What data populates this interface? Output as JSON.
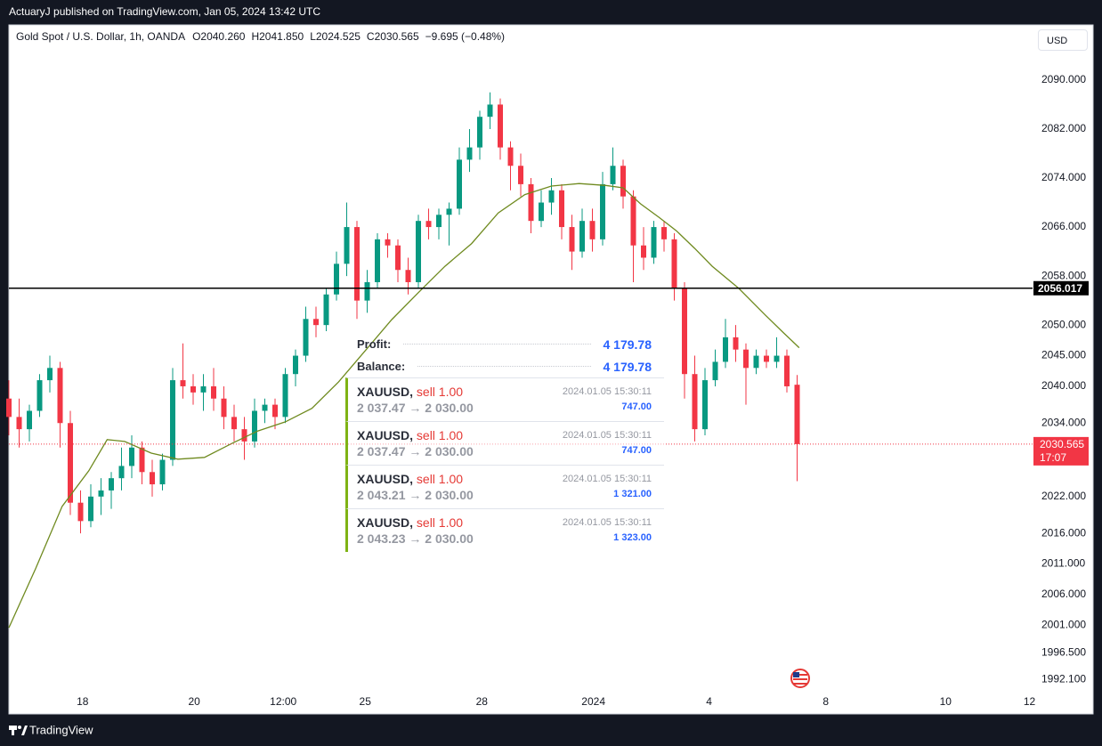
{
  "header": {
    "publisher": "ActuaryJ published on TradingView.com, Jan 05, 2024 13:42 UTC"
  },
  "chart_data": {
    "type": "candlestick",
    "title": "Gold Spot / U.S. Dollar, 1h, OANDA",
    "ohlc_labels": [
      "O2040.260",
      "H2041.850",
      "L2024.525",
      "C2030.565"
    ],
    "change_label": "−9.695 (−0.48%)",
    "currency": "USD",
    "up_color": "#089981",
    "down_color": "#f23645",
    "grid": false,
    "xlim": [
      0,
      100
    ],
    "ylim": [
      1990,
      2099
    ],
    "xticks": [
      {
        "value": 7.2,
        "label": "18"
      },
      {
        "value": 18.1,
        "label": "20"
      },
      {
        "value": 26.8,
        "label": "12:00"
      },
      {
        "value": 34.8,
        "label": "25"
      },
      {
        "value": 46.2,
        "label": "28"
      },
      {
        "value": 57.1,
        "label": "2024"
      },
      {
        "value": 68.4,
        "label": "4"
      },
      {
        "value": 79.8,
        "label": "8"
      },
      {
        "value": 91.5,
        "label": "10"
      },
      {
        "value": 99.7,
        "label": "12"
      }
    ],
    "yticks": [
      {
        "value": 2090,
        "label": "2090.000"
      },
      {
        "value": 2082,
        "label": "2082.000"
      },
      {
        "value": 2074,
        "label": "2074.000"
      },
      {
        "value": 2066,
        "label": "2066.000"
      },
      {
        "value": 2058,
        "label": "2058.000"
      },
      {
        "value": 2050,
        "label": "2050.000"
      },
      {
        "value": 2045,
        "label": "2045.000"
      },
      {
        "value": 2040,
        "label": "2040.000"
      },
      {
        "value": 2034,
        "label": "2034.000"
      },
      {
        "value": 2022,
        "label": "2022.000"
      },
      {
        "value": 2016,
        "label": "2016.000"
      },
      {
        "value": 2011,
        "label": "2011.000"
      },
      {
        "value": 2006,
        "label": "2006.000"
      },
      {
        "value": 2001,
        "label": "2001.000"
      },
      {
        "value": 1996.5,
        "label": "1996.500"
      },
      {
        "value": 1992.1,
        "label": "1992.100"
      }
    ],
    "x": [
      0,
      1,
      2,
      3,
      4,
      5,
      6,
      7,
      8,
      9,
      10,
      11,
      12,
      13,
      14,
      15,
      16,
      17,
      18,
      19,
      20,
      21,
      22,
      23,
      24,
      25,
      26,
      27,
      28,
      29,
      30,
      31,
      32,
      33,
      34,
      35,
      36,
      37,
      38,
      39,
      40,
      41,
      42,
      43,
      44,
      45,
      46,
      47,
      48,
      49,
      50,
      51,
      52,
      53,
      54,
      55,
      56,
      57,
      58,
      59,
      60,
      61,
      62,
      63,
      64,
      65,
      66,
      67,
      68,
      69,
      70,
      71,
      72,
      73,
      74,
      75,
      76,
      77
    ],
    "open": [
      2038,
      2035,
      2033,
      2036,
      2041,
      2043,
      2034,
      2021,
      2018,
      2022,
      2023,
      2025,
      2027,
      2030,
      2026,
      2024,
      2028,
      2041,
      2040,
      2039,
      2040,
      2038,
      2035,
      2033,
      2031,
      2036,
      2037,
      2035,
      2042,
      2045,
      2051,
      2050,
      2055,
      2060,
      2066,
      2054,
      2057,
      2064,
      2063,
      2059,
      2057,
      2067,
      2066,
      2068,
      2069,
      2077,
      2079,
      2084,
      2086,
      2079,
      2076,
      2073,
      2067,
      2070,
      2072,
      2066,
      2062,
      2067,
      2064,
      2073,
      2076,
      2071,
      2063,
      2061,
      2066,
      2064,
      2056,
      2042,
      2033,
      2041,
      2044,
      2048,
      2046,
      2043,
      2045,
      2044,
      2045,
      2040.26
    ],
    "high": [
      2041,
      2038,
      2037,
      2042,
      2045,
      2044,
      2036,
      2023,
      2024,
      2025,
      2026,
      2030,
      2032,
      2031,
      2028,
      2029,
      2043,
      2047,
      2042,
      2042,
      2043,
      2040,
      2037,
      2035,
      2038,
      2038,
      2038,
      2043,
      2046,
      2053,
      2053,
      2056,
      2062,
      2070,
      2067,
      2059,
      2065,
      2065,
      2064,
      2061,
      2068,
      2069,
      2069,
      2070,
      2079,
      2082,
      2085,
      2088,
      2087,
      2080,
      2078,
      2074,
      2072,
      2074,
      2073,
      2068,
      2069,
      2069,
      2075,
      2079,
      2077,
      2072,
      2066,
      2067,
      2067,
      2065,
      2057,
      2045,
      2043,
      2046,
      2051,
      2050,
      2047,
      2046,
      2046,
      2048,
      2046,
      2041.85
    ],
    "low": [
      2032,
      2030,
      2031,
      2035,
      2039,
      2030,
      2019,
      2016,
      2017,
      2019,
      2020,
      2023,
      2025,
      2024,
      2022,
      2023,
      2027,
      2038,
      2037,
      2036,
      2036,
      2033,
      2031,
      2028,
      2030,
      2034,
      2033,
      2034,
      2040,
      2044,
      2048,
      2049,
      2054,
      2058,
      2051,
      2052,
      2056,
      2061,
      2057,
      2055,
      2056,
      2064,
      2064,
      2063,
      2068,
      2075,
      2077,
      2082,
      2077,
      2072,
      2071,
      2065,
      2066,
      2068,
      2064,
      2059,
      2061,
      2062,
      2063,
      2072,
      2069,
      2057,
      2059,
      2060,
      2062,
      2054,
      2038,
      2031,
      2032,
      2040,
      2043,
      2044,
      2037,
      2042,
      2043,
      2043,
      2039,
      2024.525
    ],
    "close": [
      2035,
      2033,
      2036,
      2041,
      2043,
      2034,
      2021,
      2018,
      2022,
      2023,
      2025,
      2027,
      2030,
      2026,
      2024,
      2028,
      2041,
      2040,
      2039,
      2040,
      2038,
      2035,
      2033,
      2031,
      2036,
      2037,
      2035,
      2042,
      2045,
      2051,
      2050,
      2055,
      2060,
      2066,
      2054,
      2057,
      2064,
      2063,
      2059,
      2057,
      2067,
      2066,
      2068,
      2069,
      2077,
      2079,
      2084,
      2086,
      2079,
      2076,
      2073,
      2067,
      2070,
      2072,
      2066,
      2062,
      2067,
      2064,
      2073,
      2076,
      2071,
      2063,
      2061,
      2066,
      2064,
      2056,
      2042,
      2033,
      2041,
      2044,
      2048,
      2046,
      2043,
      2045,
      2044,
      2045,
      2040,
      2030.565
    ],
    "ma": {
      "color": "#6f8a1f",
      "x": [
        0,
        2.6,
        5.2,
        7.8,
        9.6,
        11.3,
        13.9,
        16.5,
        19.1,
        21.7,
        24.3,
        27.0,
        29.6,
        32.2,
        34.8,
        37.4,
        40.0,
        42.6,
        45.2,
        47.8,
        50.4,
        53.0,
        55.7,
        58.3,
        60.0,
        61.7,
        63.5,
        65.2,
        67.0,
        68.7,
        71.3,
        73.9,
        75.7,
        77.2
      ],
      "values": [
        2000.6,
        2010.2,
        2020.4,
        2026.2,
        2031.3,
        2031.0,
        2029.1,
        2028.1,
        2028.4,
        2030.6,
        2032.7,
        2034.2,
        2036.4,
        2040.7,
        2045.8,
        2050.9,
        2055.3,
        2059.6,
        2063.3,
        2068.3,
        2071.3,
        2072.7,
        2073.1,
        2072.8,
        2072.4,
        2069.8,
        2067.6,
        2065.4,
        2062.5,
        2059.6,
        2056.0,
        2051.6,
        2048.7,
        2046.3
      ]
    },
    "hline": {
      "value": 2056.017,
      "label": "2056.017",
      "color": "#000000"
    },
    "last_price": {
      "value": 2030.565,
      "label": "2030.565",
      "countdown": "17:07",
      "color": "#f23645"
    }
  },
  "positions_panel": {
    "profit_label": "Profit:",
    "profit": "4 179.78",
    "balance_label": "Balance:",
    "balance": "4 179.78",
    "trades": [
      {
        "symbol": "XAUUSD,",
        "side": "sell 1.00",
        "prices": "2 037.47 → 2 030.00",
        "time": "2024.01.05 15:30:11",
        "amount": "747.00"
      },
      {
        "symbol": "XAUUSD,",
        "side": "sell 1.00",
        "prices": "2 037.47 → 2 030.00",
        "time": "2024.01.05 15:30:11",
        "amount": "747.00"
      },
      {
        "symbol": "XAUUSD,",
        "side": "sell 1.00",
        "prices": "2 043.21 → 2 030.00",
        "time": "2024.01.05 15:30:11",
        "amount": "1 321.00"
      },
      {
        "symbol": "XAUUSD,",
        "side": "sell 1.00",
        "prices": "2 043.23 → 2 030.00",
        "time": "2024.01.05 15:30:11",
        "amount": "1 323.00"
      }
    ]
  },
  "footer": {
    "brand": "TradingView"
  }
}
